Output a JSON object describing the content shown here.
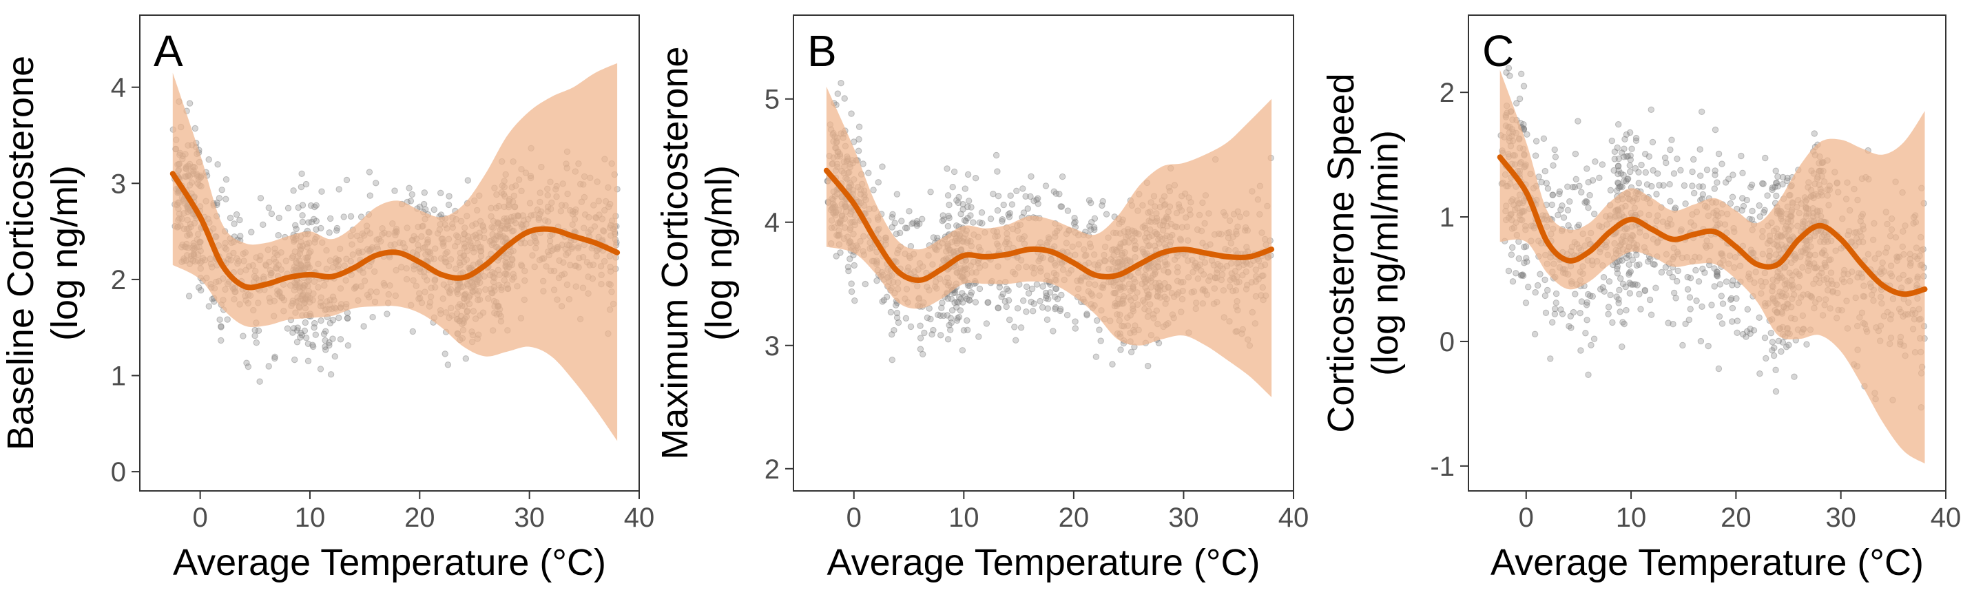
{
  "figure": {
    "panels": [
      {
        "tag": "A",
        "ylabel_line1": "Baseline Corticosterone",
        "ylabel_line2": "(log ng/ml)",
        "xlabel": "Average Temperature (°C)"
      },
      {
        "tag": "B",
        "ylabel_line1": "Maximum Corticosterone",
        "ylabel_line2": "(log ng/ml)",
        "xlabel": "Average Temperature (°C)"
      },
      {
        "tag": "C",
        "ylabel_line1": "Corticosterone Speed",
        "ylabel_line2": "(log ng/ml/min)",
        "xlabel": "Average Temperature (°C)"
      }
    ]
  },
  "colors": {
    "fit_line": "#d95f02",
    "ribbon": "#f0b48a",
    "points": "#7f7f7f",
    "frame": "#333333"
  },
  "chart_data": [
    {
      "type": "scatter",
      "title": "",
      "xlabel": "Average Temperature (°C)",
      "ylabel": "Baseline Corticosterone (log ng/ml)",
      "xlim": [
        -5.5,
        40
      ],
      "ylim": [
        -0.2,
        4.75
      ],
      "xticks": [
        0,
        10,
        20,
        30,
        40
      ],
      "yticks": [
        0,
        1,
        2,
        3,
        4
      ],
      "grid": false,
      "fit": {
        "x": [
          -2.5,
          0,
          2,
          4,
          6,
          8,
          10,
          12,
          14,
          16,
          18,
          20,
          22,
          24,
          26,
          28,
          30,
          32,
          34,
          36,
          38
        ],
        "y": [
          3.1,
          2.65,
          2.15,
          1.93,
          1.95,
          2.02,
          2.05,
          2.03,
          2.12,
          2.25,
          2.28,
          2.18,
          2.05,
          2.02,
          2.15,
          2.35,
          2.5,
          2.52,
          2.45,
          2.38,
          2.28
        ],
        "lower": [
          2.15,
          2.0,
          1.7,
          1.52,
          1.52,
          1.58,
          1.6,
          1.62,
          1.7,
          1.72,
          1.72,
          1.65,
          1.5,
          1.3,
          1.2,
          1.25,
          1.3,
          1.2,
          0.95,
          0.65,
          0.32
        ],
        "upper": [
          4.15,
          3.3,
          2.58,
          2.38,
          2.38,
          2.45,
          2.5,
          2.42,
          2.55,
          2.75,
          2.82,
          2.72,
          2.65,
          2.78,
          3.1,
          3.5,
          3.75,
          3.9,
          4.0,
          4.15,
          4.25
        ]
      },
      "scatter": {
        "seed": 11,
        "count": 1300,
        "x_range": [
          -2.5,
          38
        ],
        "spread": 0.55,
        "dense_x": [
          -1,
          24.5,
          27.5,
          9.5
        ],
        "min": 0.02,
        "max": 4.3
      }
    },
    {
      "type": "scatter",
      "title": "",
      "xlabel": "Average Temperature (°C)",
      "ylabel": "Maximum Corticosterone (log ng/ml)",
      "xlim": [
        -5.5,
        40
      ],
      "ylim": [
        1.82,
        5.68
      ],
      "xticks": [
        0,
        10,
        20,
        30,
        40
      ],
      "yticks": [
        2,
        3,
        4,
        5
      ],
      "grid": false,
      "fit": {
        "x": [
          -2.5,
          0,
          2,
          4,
          6,
          8,
          10,
          12,
          14,
          16,
          18,
          20,
          22,
          24,
          26,
          28,
          30,
          32,
          34,
          36,
          38
        ],
        "y": [
          4.42,
          4.15,
          3.85,
          3.6,
          3.53,
          3.62,
          3.73,
          3.72,
          3.74,
          3.78,
          3.76,
          3.67,
          3.57,
          3.57,
          3.66,
          3.75,
          3.78,
          3.75,
          3.72,
          3.72,
          3.78
        ],
        "lower": [
          3.8,
          3.75,
          3.58,
          3.35,
          3.3,
          3.38,
          3.5,
          3.5,
          3.5,
          3.52,
          3.5,
          3.4,
          3.25,
          3.05,
          3.0,
          3.05,
          3.08,
          3.0,
          2.88,
          2.75,
          2.58
        ],
        "upper": [
          5.1,
          4.6,
          4.15,
          3.85,
          3.78,
          3.87,
          3.97,
          3.95,
          3.98,
          4.05,
          4.02,
          3.95,
          3.9,
          4.05,
          4.3,
          4.45,
          4.48,
          4.55,
          4.65,
          4.82,
          5.0
        ]
      },
      "scatter": {
        "seed": 23,
        "count": 1300,
        "x_range": [
          -2.5,
          38
        ],
        "spread": 0.42,
        "dense_x": [
          -1,
          24.5,
          27.5,
          9.5
        ],
        "min": 2.05,
        "max": 5.45
      }
    },
    {
      "type": "scatter",
      "title": "",
      "xlabel": "Average Temperature (°C)",
      "ylabel": "Corticosterone Speed (log ng/ml/min)",
      "xlim": [
        -5.5,
        40
      ],
      "ylim": [
        -1.2,
        2.62
      ],
      "xticks": [
        0,
        10,
        20,
        30,
        40
      ],
      "yticks": [
        -1,
        0,
        1,
        2
      ],
      "ytick_labels": [
        "-1",
        "0",
        "1",
        "2"
      ],
      "grid": false,
      "fit": {
        "x": [
          -2.5,
          0,
          2,
          4,
          6,
          8,
          10,
          12,
          14,
          16,
          18,
          20,
          22,
          24,
          26,
          28,
          30,
          32,
          34,
          36,
          38
        ],
        "y": [
          1.48,
          1.2,
          0.8,
          0.65,
          0.72,
          0.88,
          0.98,
          0.9,
          0.82,
          0.86,
          0.88,
          0.76,
          0.62,
          0.62,
          0.82,
          0.93,
          0.82,
          0.62,
          0.45,
          0.38,
          0.42
        ],
        "lower": [
          0.8,
          0.8,
          0.55,
          0.42,
          0.48,
          0.62,
          0.72,
          0.68,
          0.6,
          0.62,
          0.62,
          0.5,
          0.32,
          0.05,
          0.02,
          0.05,
          -0.08,
          -0.35,
          -0.65,
          -0.88,
          -0.98
        ],
        "upper": [
          2.18,
          1.6,
          1.05,
          0.9,
          0.95,
          1.12,
          1.23,
          1.15,
          1.05,
          1.1,
          1.15,
          1.05,
          0.95,
          1.12,
          1.4,
          1.6,
          1.62,
          1.55,
          1.5,
          1.6,
          1.85
        ]
      },
      "scatter": {
        "seed": 37,
        "count": 1300,
        "x_range": [
          -2.5,
          38
        ],
        "spread": 0.55,
        "dense_x": [
          -1,
          24.5,
          27.5,
          9.5
        ],
        "min": -0.98,
        "max": 2.45
      }
    }
  ]
}
